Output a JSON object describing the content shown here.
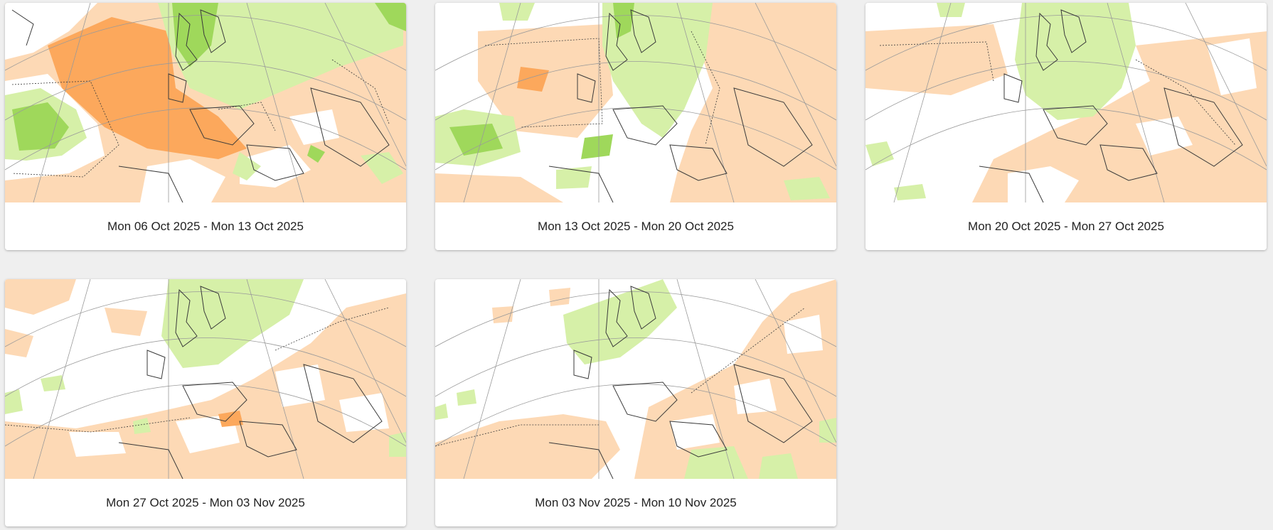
{
  "colors": {
    "page_background": "#efefef",
    "card_background": "#ffffff",
    "caption_text": "#222222",
    "anomaly_warm_light": "#fdd9b5",
    "anomaly_warm_strong": "#fca85c",
    "anomaly_wet_light": "#d6f0a8",
    "anomaly_wet_strong": "#9fd85b",
    "neutral": "#ffffff",
    "coastline": "#3a3a3a",
    "graticule": "#9a9a9a"
  },
  "cards": [
    {
      "caption": "Mon 06 Oct 2025 - Mon 13 Oct 2025",
      "map_icon": "anomaly-map"
    },
    {
      "caption": "Mon 13 Oct 2025 - Mon 20 Oct 2025",
      "map_icon": "anomaly-map"
    },
    {
      "caption": "Mon 20 Oct 2025 - Mon 27 Oct 2025",
      "map_icon": "anomaly-map"
    },
    {
      "caption": "Mon 27 Oct 2025 - Mon 03 Nov 2025",
      "map_icon": "anomaly-map"
    },
    {
      "caption": "Mon 03 Nov 2025 - Mon 10 Nov 2025",
      "map_icon": "anomaly-map"
    }
  ]
}
